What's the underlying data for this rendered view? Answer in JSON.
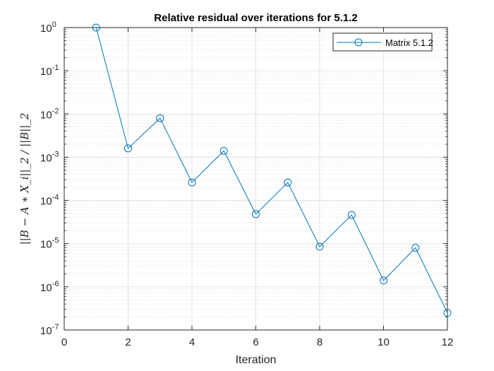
{
  "chart_data": {
    "type": "line",
    "title": "Relative residual over iterations for 5.1.2",
    "xlabel": "Iteration",
    "ylabel": "||B − A ∗ X_i||_2 / ||B||_2",
    "xlim": [
      0,
      12
    ],
    "ylim": [
      1e-07,
      1
    ],
    "yscale": "log",
    "grid": true,
    "minor_grid": true,
    "legend_location": "top-right",
    "x_ticks": [
      0,
      2,
      4,
      6,
      8,
      10,
      12
    ],
    "x_tick_labels": [
      "0",
      "2",
      "4",
      "6",
      "8",
      "10",
      "12"
    ],
    "y_ticks": [
      1e-07,
      1e-06,
      1e-05,
      0.0001,
      0.001,
      0.01,
      0.1,
      1
    ],
    "y_tick_labels": [
      {
        "base": "10",
        "exp": "-7"
      },
      {
        "base": "10",
        "exp": "-6"
      },
      {
        "base": "10",
        "exp": "-5"
      },
      {
        "base": "10",
        "exp": "-4"
      },
      {
        "base": "10",
        "exp": "-3"
      },
      {
        "base": "10",
        "exp": "-2"
      },
      {
        "base": "10",
        "exp": "-1"
      },
      {
        "base": "10",
        "exp": "0"
      }
    ],
    "series": [
      {
        "name": "Matrix 5.1.2",
        "color": "#0072BD",
        "marker": "circle",
        "x": [
          1,
          2,
          3,
          4,
          5,
          6,
          7,
          8,
          9,
          10,
          11,
          12
        ],
        "y": [
          1.0,
          0.0016,
          0.008,
          0.00026,
          0.0014,
          4.8e-05,
          0.00026,
          8.5e-06,
          4.6e-05,
          1.4e-06,
          8e-06,
          2.5e-07
        ]
      }
    ]
  }
}
